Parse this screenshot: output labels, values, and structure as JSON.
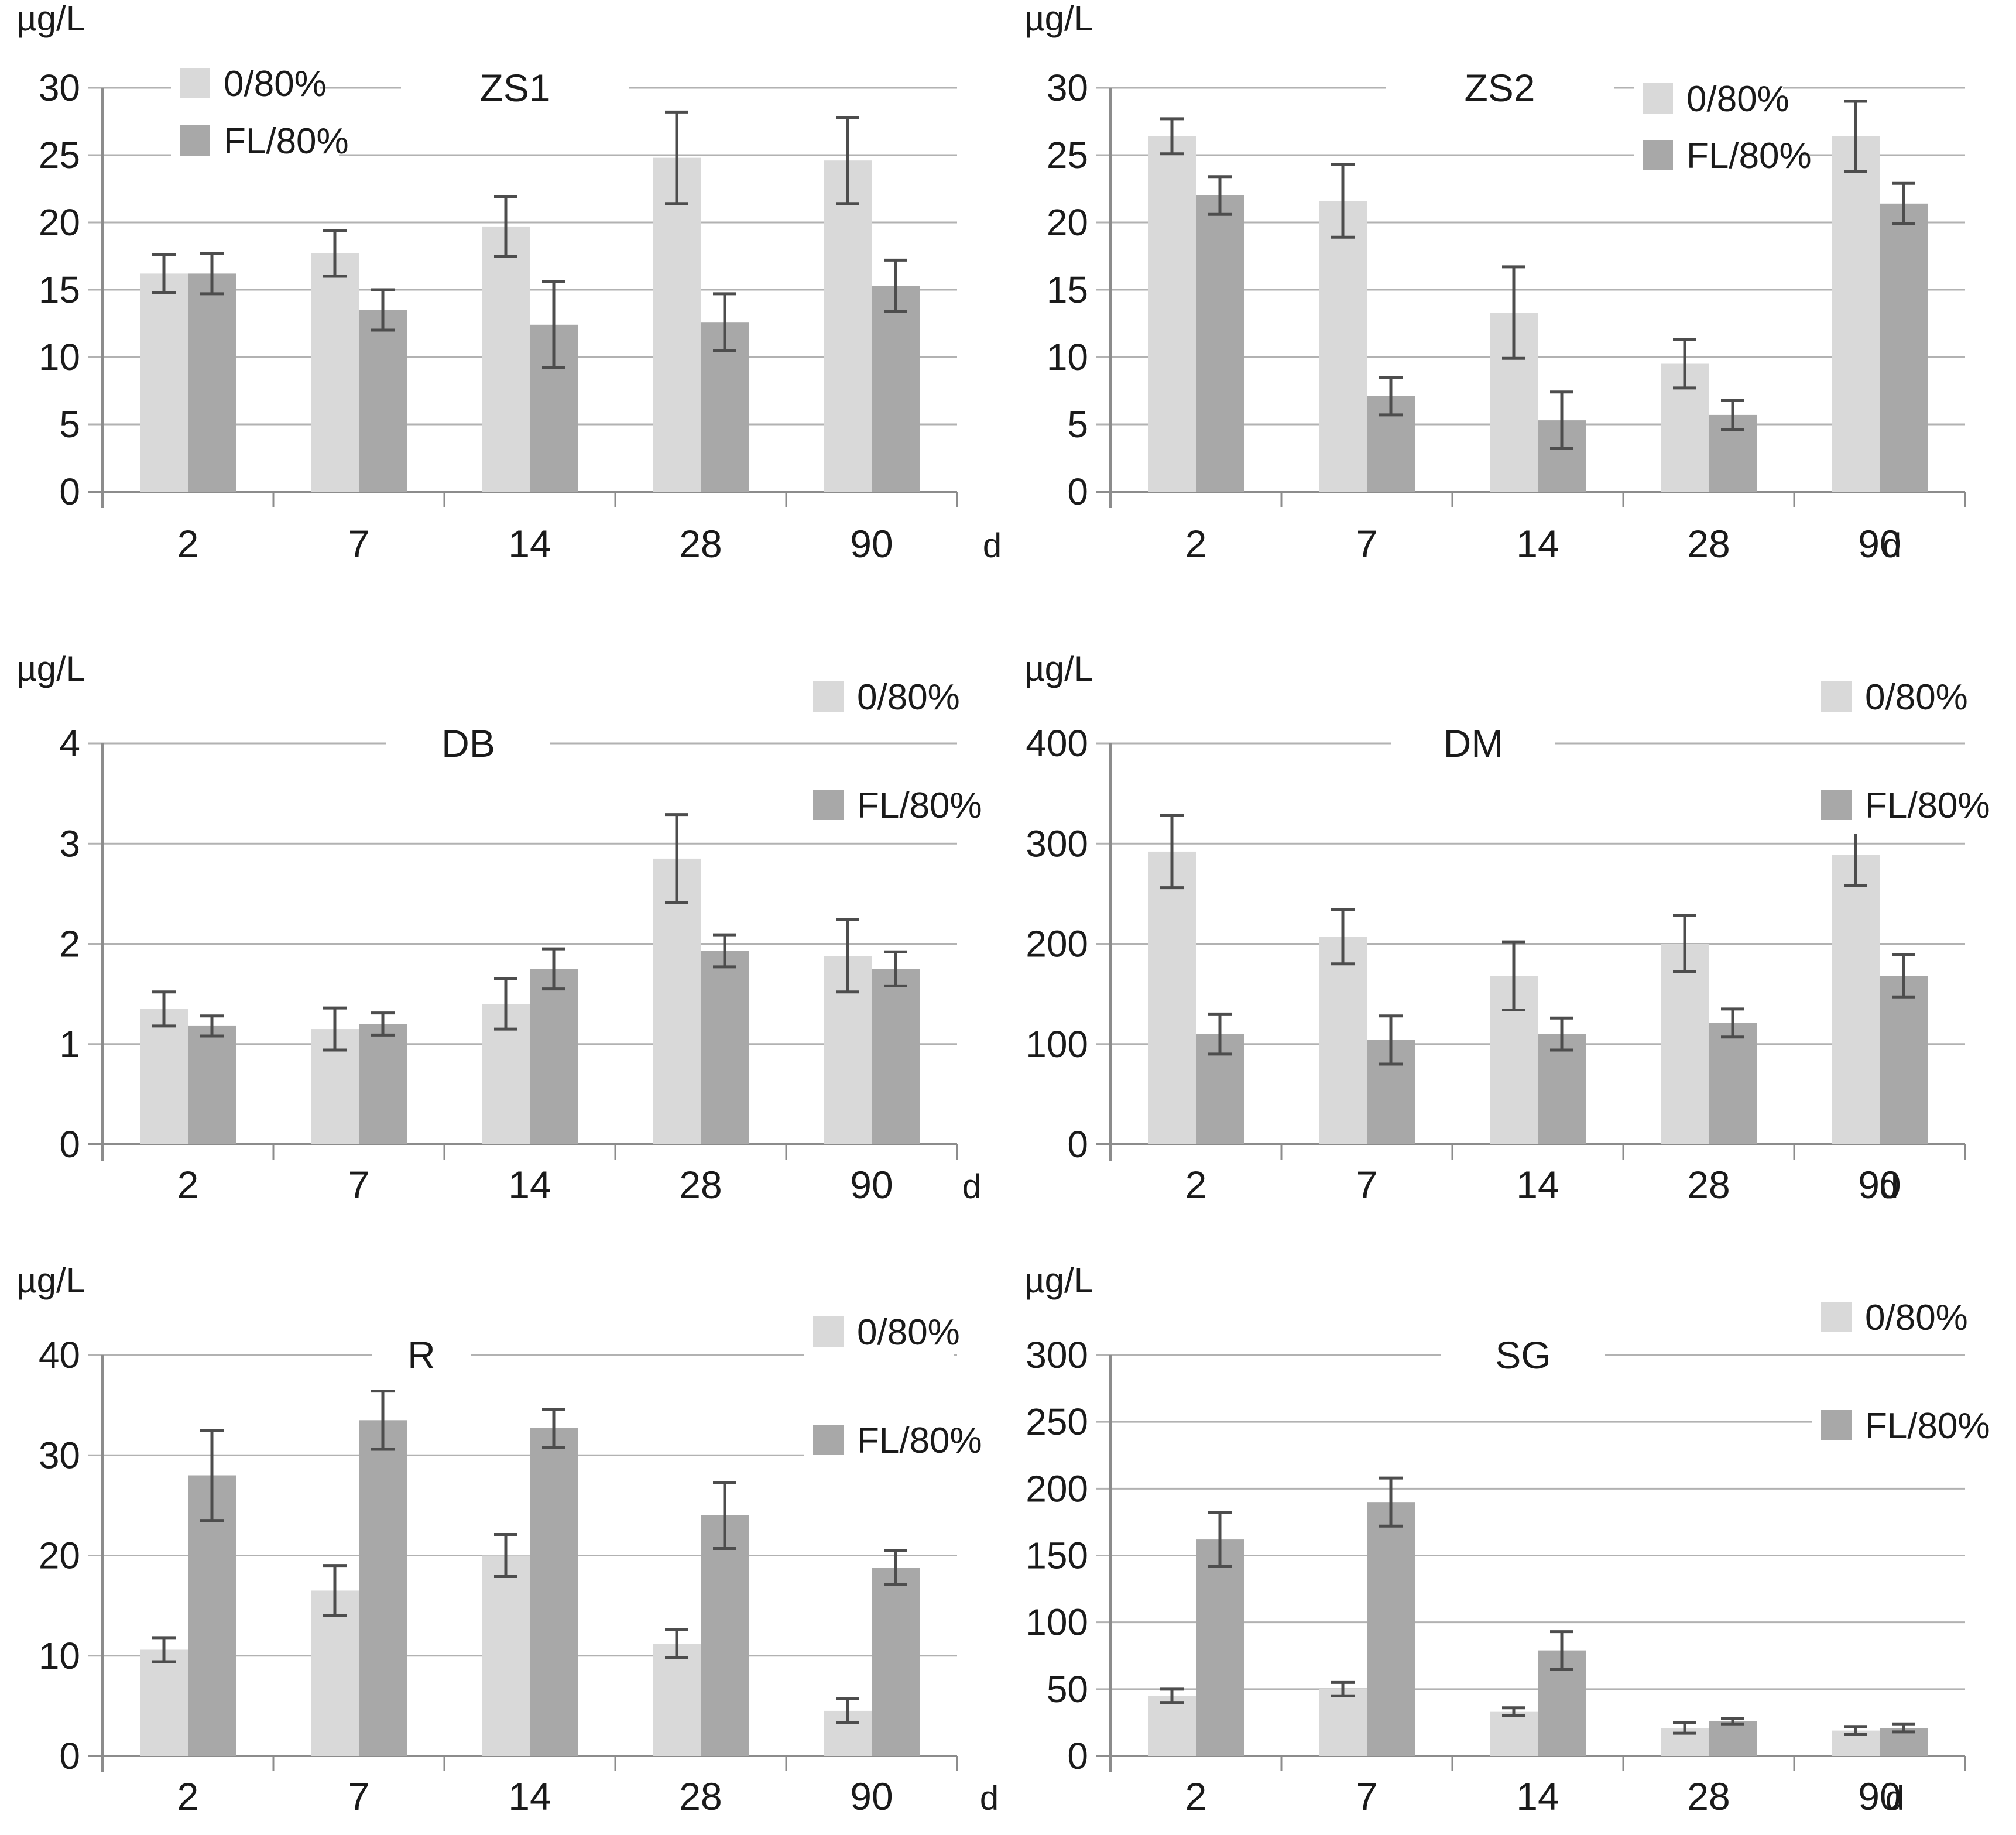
{
  "figure": {
    "y_axis_unit": "µg/L",
    "x_axis_unit": "d",
    "legend": [
      "0/80%",
      "FL/80%"
    ]
  },
  "colors": {
    "series_light": "#d9d9d9",
    "series_dark": "#a8a8a8",
    "error_bar": "#4d4d4d",
    "gridline": "#b2b2b2",
    "axis": "#8c8c8c",
    "text": "#1a1a1a",
    "background": "#ffffff"
  },
  "chart_data": [
    {
      "type": "bar",
      "title": "ZS1",
      "ylabel": "µg/L",
      "xlabel": "d",
      "categories": [
        "2",
        "7",
        "14",
        "28",
        "90"
      ],
      "ylim": [
        0,
        30
      ],
      "yticks": [
        0,
        5,
        10,
        15,
        20,
        25,
        30
      ],
      "grid": true,
      "legend_position": "top-left",
      "series": [
        {
          "name": "0/80%",
          "color_key": "series_light",
          "values": [
            16.2,
            17.7,
            19.7,
            24.8,
            24.6
          ],
          "errors": [
            1.4,
            1.7,
            2.2,
            3.4,
            3.2
          ]
        },
        {
          "name": "FL/80%",
          "color_key": "series_dark",
          "values": [
            16.2,
            13.5,
            12.4,
            12.6,
            15.3
          ],
          "errors": [
            1.5,
            1.5,
            3.2,
            2.1,
            1.9
          ]
        }
      ]
    },
    {
      "type": "bar",
      "title": "ZS2",
      "ylabel": "µg/L",
      "xlabel": "d",
      "categories": [
        "2",
        "7",
        "14",
        "28",
        "90"
      ],
      "ylim": [
        0,
        30
      ],
      "yticks": [
        0,
        5,
        10,
        15,
        20,
        25,
        30
      ],
      "grid": true,
      "legend_position": "top-right",
      "series": [
        {
          "name": "0/80%",
          "color_key": "series_light",
          "values": [
            26.4,
            21.6,
            13.3,
            9.5,
            26.4
          ],
          "errors": [
            1.3,
            2.7,
            3.4,
            1.8,
            2.6
          ]
        },
        {
          "name": "FL/80%",
          "color_key": "series_dark",
          "values": [
            22.0,
            7.1,
            5.3,
            5.7,
            21.4
          ],
          "errors": [
            1.4,
            1.4,
            2.1,
            1.1,
            1.5
          ]
        }
      ]
    },
    {
      "type": "bar",
      "title": "DB",
      "ylabel": "µg/L",
      "xlabel": "d",
      "categories": [
        "2",
        "7",
        "14",
        "28",
        "90"
      ],
      "ylim": [
        0,
        4
      ],
      "yticks": [
        0,
        1,
        2,
        3,
        4
      ],
      "grid": true,
      "legend_position": "top-right",
      "series": [
        {
          "name": "0/80%",
          "color_key": "series_light",
          "values": [
            1.35,
            1.15,
            1.4,
            2.85,
            1.88
          ],
          "errors": [
            0.17,
            0.21,
            0.25,
            0.44,
            0.36
          ]
        },
        {
          "name": "FL/80%",
          "color_key": "series_dark",
          "values": [
            1.18,
            1.2,
            1.75,
            1.93,
            1.75
          ],
          "errors": [
            0.1,
            0.11,
            0.2,
            0.16,
            0.17
          ]
        }
      ]
    },
    {
      "type": "bar",
      "title": "DM",
      "ylabel": "µg/L",
      "xlabel": "d",
      "categories": [
        "2",
        "7",
        "14",
        "28",
        "90"
      ],
      "ylim": [
        0,
        400
      ],
      "yticks": [
        0,
        100,
        200,
        300,
        400
      ],
      "grid": true,
      "legend_position": "top-right",
      "series": [
        {
          "name": "0/80%",
          "color_key": "series_light",
          "values": [
            292,
            207,
            168,
            200,
            289
          ],
          "errors": [
            36,
            27,
            34,
            28,
            31
          ]
        },
        {
          "name": "FL/80%",
          "color_key": "series_dark",
          "values": [
            110,
            104,
            110,
            121,
            168
          ],
          "errors": [
            20,
            24,
            16,
            14,
            21
          ]
        }
      ]
    },
    {
      "type": "bar",
      "title": "R",
      "ylabel": "µg/L",
      "xlabel": "d",
      "categories": [
        "2",
        "7",
        "14",
        "28",
        "90"
      ],
      "ylim": [
        0,
        40
      ],
      "yticks": [
        0,
        10,
        20,
        30,
        40
      ],
      "grid": true,
      "legend_position": "top-right",
      "series": [
        {
          "name": "0/80%",
          "color_key": "series_light",
          "values": [
            10.6,
            16.5,
            20.0,
            11.2,
            4.5
          ],
          "errors": [
            1.2,
            2.5,
            2.1,
            1.4,
            1.2
          ]
        },
        {
          "name": "FL/80%",
          "color_key": "series_dark",
          "values": [
            28.0,
            33.5,
            32.7,
            24.0,
            18.8
          ],
          "errors": [
            4.5,
            2.9,
            1.9,
            3.3,
            1.7
          ]
        }
      ]
    },
    {
      "type": "bar",
      "title": "SG",
      "ylabel": "µg/L",
      "xlabel": "d",
      "categories": [
        "2",
        "7",
        "14",
        "28",
        "90"
      ],
      "ylim": [
        0,
        300
      ],
      "yticks": [
        0,
        50,
        100,
        150,
        200,
        250,
        300
      ],
      "grid": true,
      "legend_position": "top-right",
      "series": [
        {
          "name": "0/80%",
          "color_key": "series_light",
          "values": [
            45,
            50,
            33,
            21,
            19
          ],
          "errors": [
            5,
            5,
            3,
            4,
            3
          ]
        },
        {
          "name": "FL/80%",
          "color_key": "series_dark",
          "values": [
            162,
            190,
            79,
            26,
            21
          ],
          "errors": [
            20,
            18,
            14,
            2,
            3
          ]
        }
      ]
    }
  ]
}
